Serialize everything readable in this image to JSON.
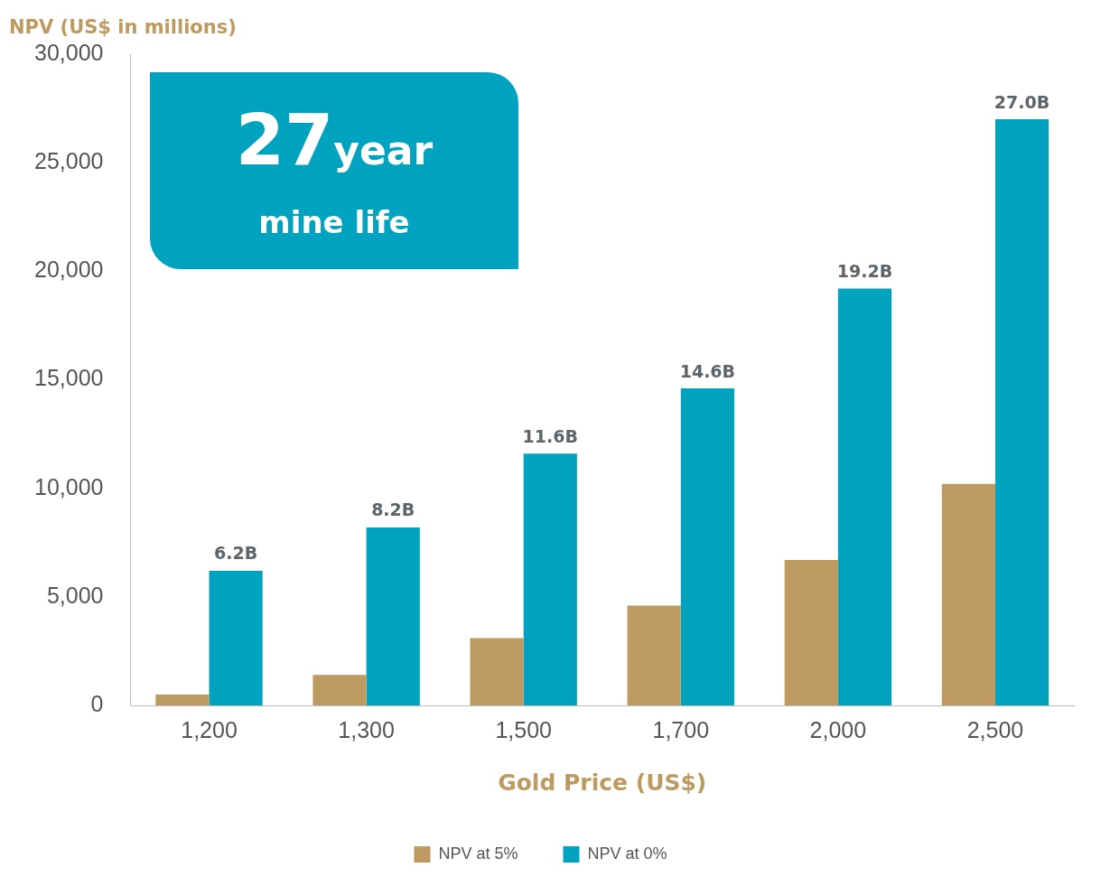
{
  "chart_data": {
    "type": "bar",
    "ylabel": "NPV (US$ in millions)",
    "xlabel": "Gold Price (US$)",
    "categories": [
      "1,200",
      "1,300",
      "1,500",
      "1,700",
      "2,000",
      "2,500"
    ],
    "series": [
      {
        "name": "NPV at 5%",
        "color": "#bd9a5f",
        "values": [
          500,
          1400,
          3100,
          4600,
          6700,
          10200
        ]
      },
      {
        "name": "NPV at 0%",
        "color": "#00a3bf",
        "values": [
          6200,
          8200,
          11600,
          14600,
          19200,
          27000
        ]
      }
    ],
    "ylim": [
      0,
      30000
    ],
    "yticks": [
      0,
      {
        "value": 5000,
        "label": "5,000"
      },
      {
        "value": 10000,
        "label": "10,000"
      },
      {
        "value": 15000,
        "label": "15,000"
      },
      {
        "value": 20000,
        "label": "20,000"
      },
      {
        "value": 25000,
        "label": "25,000"
      },
      {
        "value": 30000,
        "label": "30,000"
      }
    ],
    "grid": false,
    "legend": "bottom",
    "annotations": [
      "27",
      "year",
      "mine life",
      {
        "text": "6.2B",
        "x": "1,200",
        "y": 6200
      },
      {
        "text": "8.2B",
        "x": "1,300",
        "y": 8200
      },
      {
        "text": "11.6B",
        "x": "1,500",
        "y": 11600
      },
      {
        "text": "14.6B",
        "x": "1,700",
        "y": 14600
      },
      {
        "text": "19.2B",
        "x": "2,000",
        "y": 19200
      },
      {
        "text": "27.0B",
        "x": "2,500",
        "y": 27000
      }
    ]
  }
}
